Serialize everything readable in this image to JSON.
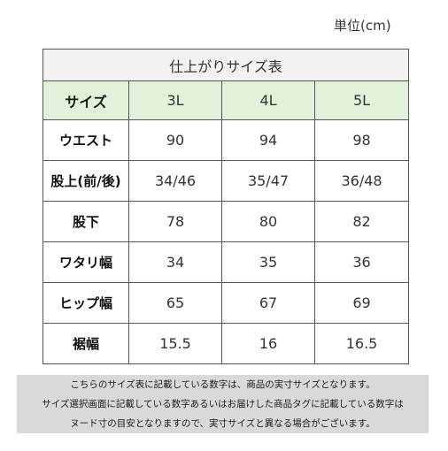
{
  "unit_label": "単位(cm)",
  "table": {
    "title": "仕上がりサイズ表",
    "header": [
      "サイズ",
      "3L",
      "4L",
      "5L"
    ],
    "rows": [
      {
        "label": "ウエスト",
        "values": [
          "90",
          "94",
          "98"
        ]
      },
      {
        "label": "股上(前/後)",
        "values": [
          "34/46",
          "35/47",
          "36/48"
        ]
      },
      {
        "label": "股下",
        "values": [
          "78",
          "80",
          "82"
        ]
      },
      {
        "label": "ワタリ幅",
        "values": [
          "34",
          "35",
          "36"
        ]
      },
      {
        "label": "ヒップ幅",
        "values": [
          "65",
          "67",
          "69"
        ]
      },
      {
        "label": "裾幅",
        "values": [
          "15.5",
          "16",
          "16.5"
        ]
      }
    ]
  },
  "notes": [
    "こちらのサイズ表に記載している数字は、商品の実寸サイズとなります。",
    "サイズ選択画面に記載している数字あるいはお届けした商品タグに記載している数字は",
    "ヌード寸の目安となりますので、実寸サイズと異なる場合がございます。"
  ],
  "colors": {
    "title_bg": "#f2f2f2",
    "header_bg": "#e3f0da",
    "notes_bg": "#d9d9d9",
    "border": "#555555"
  }
}
